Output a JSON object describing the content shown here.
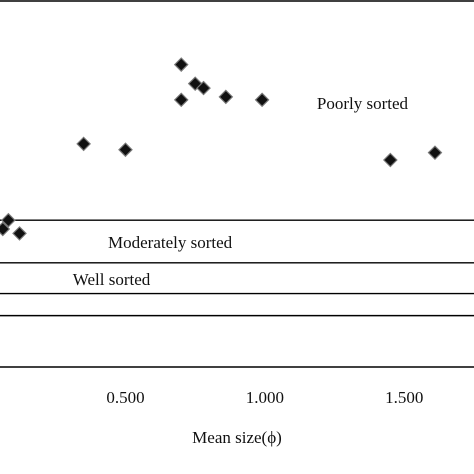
{
  "chart_data": {
    "type": "scatter",
    "title": "",
    "xlabel": "Mean size(ϕ)",
    "ylabel": "",
    "xlim": [
      0.05,
      1.75
    ],
    "ylim": [
      0,
      2.5
    ],
    "x_ticks": [
      {
        "value": 0.5,
        "label": "0.500"
      },
      {
        "value": 1.0,
        "label": "1.000"
      },
      {
        "value": 1.5,
        "label": "1.500"
      }
    ],
    "grid": false,
    "band_boundaries": [
      0.35,
      0.5,
      0.71,
      1.0,
      2.5
    ],
    "band_labels": [
      {
        "text": "Poorly sorted",
        "x": 1.35,
        "y": 1.8
      },
      {
        "text": "Moderately sorted",
        "x": 0.66,
        "y": 0.85
      },
      {
        "text": "Well sorted",
        "x": 0.45,
        "y": 0.6
      }
    ],
    "points": [
      {
        "x": 0.06,
        "y": 0.94
      },
      {
        "x": 0.08,
        "y": 1.0
      },
      {
        "x": 0.12,
        "y": 0.91
      },
      {
        "x": 0.35,
        "y": 1.52
      },
      {
        "x": 0.5,
        "y": 1.48
      },
      {
        "x": 0.7,
        "y": 2.06
      },
      {
        "x": 0.7,
        "y": 1.82
      },
      {
        "x": 0.75,
        "y": 1.93
      },
      {
        "x": 0.78,
        "y": 1.9
      },
      {
        "x": 0.86,
        "y": 1.84
      },
      {
        "x": 0.99,
        "y": 1.82
      },
      {
        "x": 1.45,
        "y": 1.41
      },
      {
        "x": 1.61,
        "y": 1.46
      }
    ]
  }
}
